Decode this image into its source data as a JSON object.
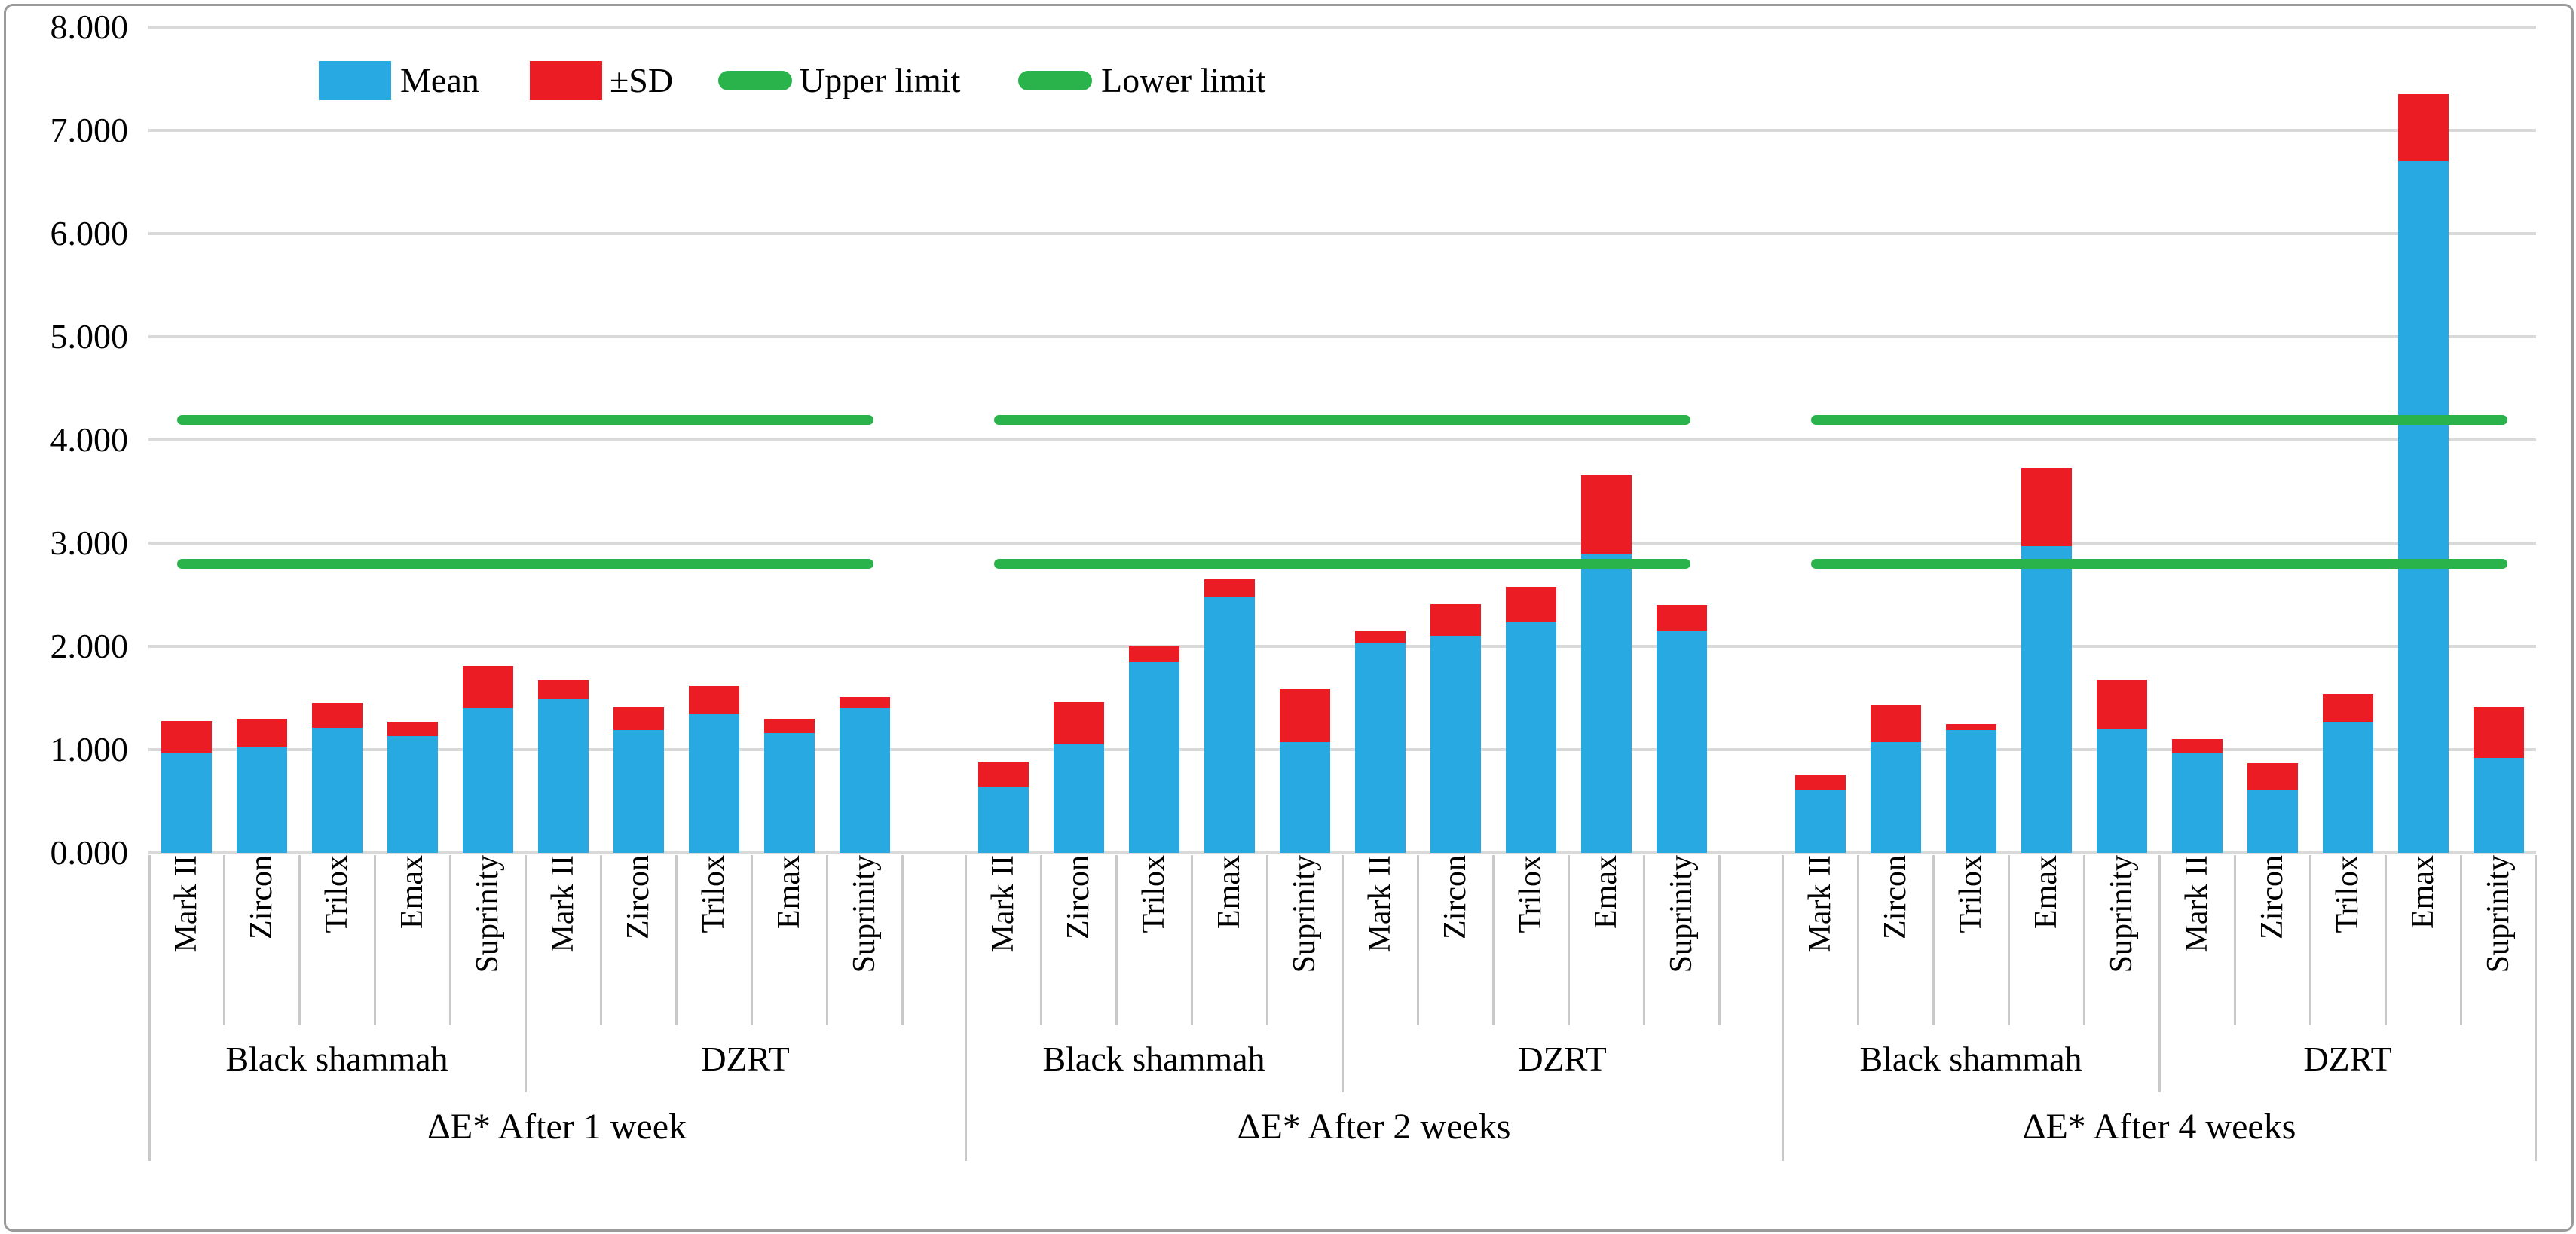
{
  "figure": {
    "title": ""
  },
  "colors": {
    "mean": "#29A9E1",
    "sd": "#EC1C24",
    "limit_line": "#2BB34B",
    "gridline": "#D9D9D9",
    "separator": "#C9C9C9",
    "figure_border": "#9B9B9B",
    "text": "#000000",
    "background": "#FFFFFF"
  },
  "legend": {
    "items": [
      {
        "label": "Mean",
        "marker": "swatch",
        "color": "#29A9E1"
      },
      {
        "label": "±SD",
        "marker": "swatch",
        "color": "#EC1C24"
      },
      {
        "label": "Upper limit",
        "marker": "line",
        "color": "#2BB34B"
      },
      {
        "label": "Lower limit",
        "marker": "line",
        "color": "#2BB34B"
      }
    ]
  },
  "chart_data": {
    "type": "bar",
    "stacked_segments": [
      "Mean",
      "±SD"
    ],
    "title": "",
    "xlabel": "",
    "ylabel": "",
    "ylim": [
      0,
      8
    ],
    "grid": "horizontal",
    "legend_position": "top-left-inside",
    "y_tick_labels": [
      "0.000",
      "1.000",
      "2.000",
      "3.000",
      "4.000",
      "5.000",
      "6.000",
      "7.000",
      "8.000"
    ],
    "materials": [
      "Mark II",
      "Zircon",
      "Trilox",
      "Emax",
      "Suprinity"
    ],
    "upper_limit": 4.2,
    "lower_limit": 2.8,
    "groups": [
      {
        "label": "ΔE* After 1 week",
        "subgroups": [
          {
            "label": "Black shammah",
            "mean": [
              0.97,
              1.03,
              1.21,
              1.13,
              1.4
            ],
            "sd": [
              0.31,
              0.27,
              0.24,
              0.14,
              0.41
            ]
          },
          {
            "label": "DZRT",
            "mean": [
              1.49,
              1.19,
              1.34,
              1.16,
              1.4
            ],
            "sd": [
              0.18,
              0.22,
              0.28,
              0.14,
              0.11
            ]
          }
        ]
      },
      {
        "label": "ΔE* After 2 weeks",
        "subgroups": [
          {
            "label": "Black shammah",
            "mean": [
              0.64,
              1.05,
              1.85,
              2.48,
              1.07
            ],
            "sd": [
              0.24,
              0.41,
              0.15,
              0.17,
              0.52
            ]
          },
          {
            "label": "DZRT",
            "mean": [
              2.03,
              2.1,
              2.23,
              2.9,
              2.15
            ],
            "sd": [
              0.12,
              0.31,
              0.35,
              0.76,
              0.25
            ]
          }
        ]
      },
      {
        "label": "ΔE* After 4 weeks",
        "subgroups": [
          {
            "label": "Black shammah",
            "mean": [
              0.61,
              1.07,
              1.19,
              2.97,
              1.2
            ],
            "sd": [
              0.14,
              0.36,
              0.06,
              0.76,
              0.48
            ]
          },
          {
            "label": "DZRT",
            "mean": [
              0.96,
              0.61,
              1.26,
              6.7,
              0.92
            ],
            "sd": [
              0.14,
              0.26,
              0.28,
              0.65,
              0.49
            ]
          }
        ]
      }
    ]
  }
}
